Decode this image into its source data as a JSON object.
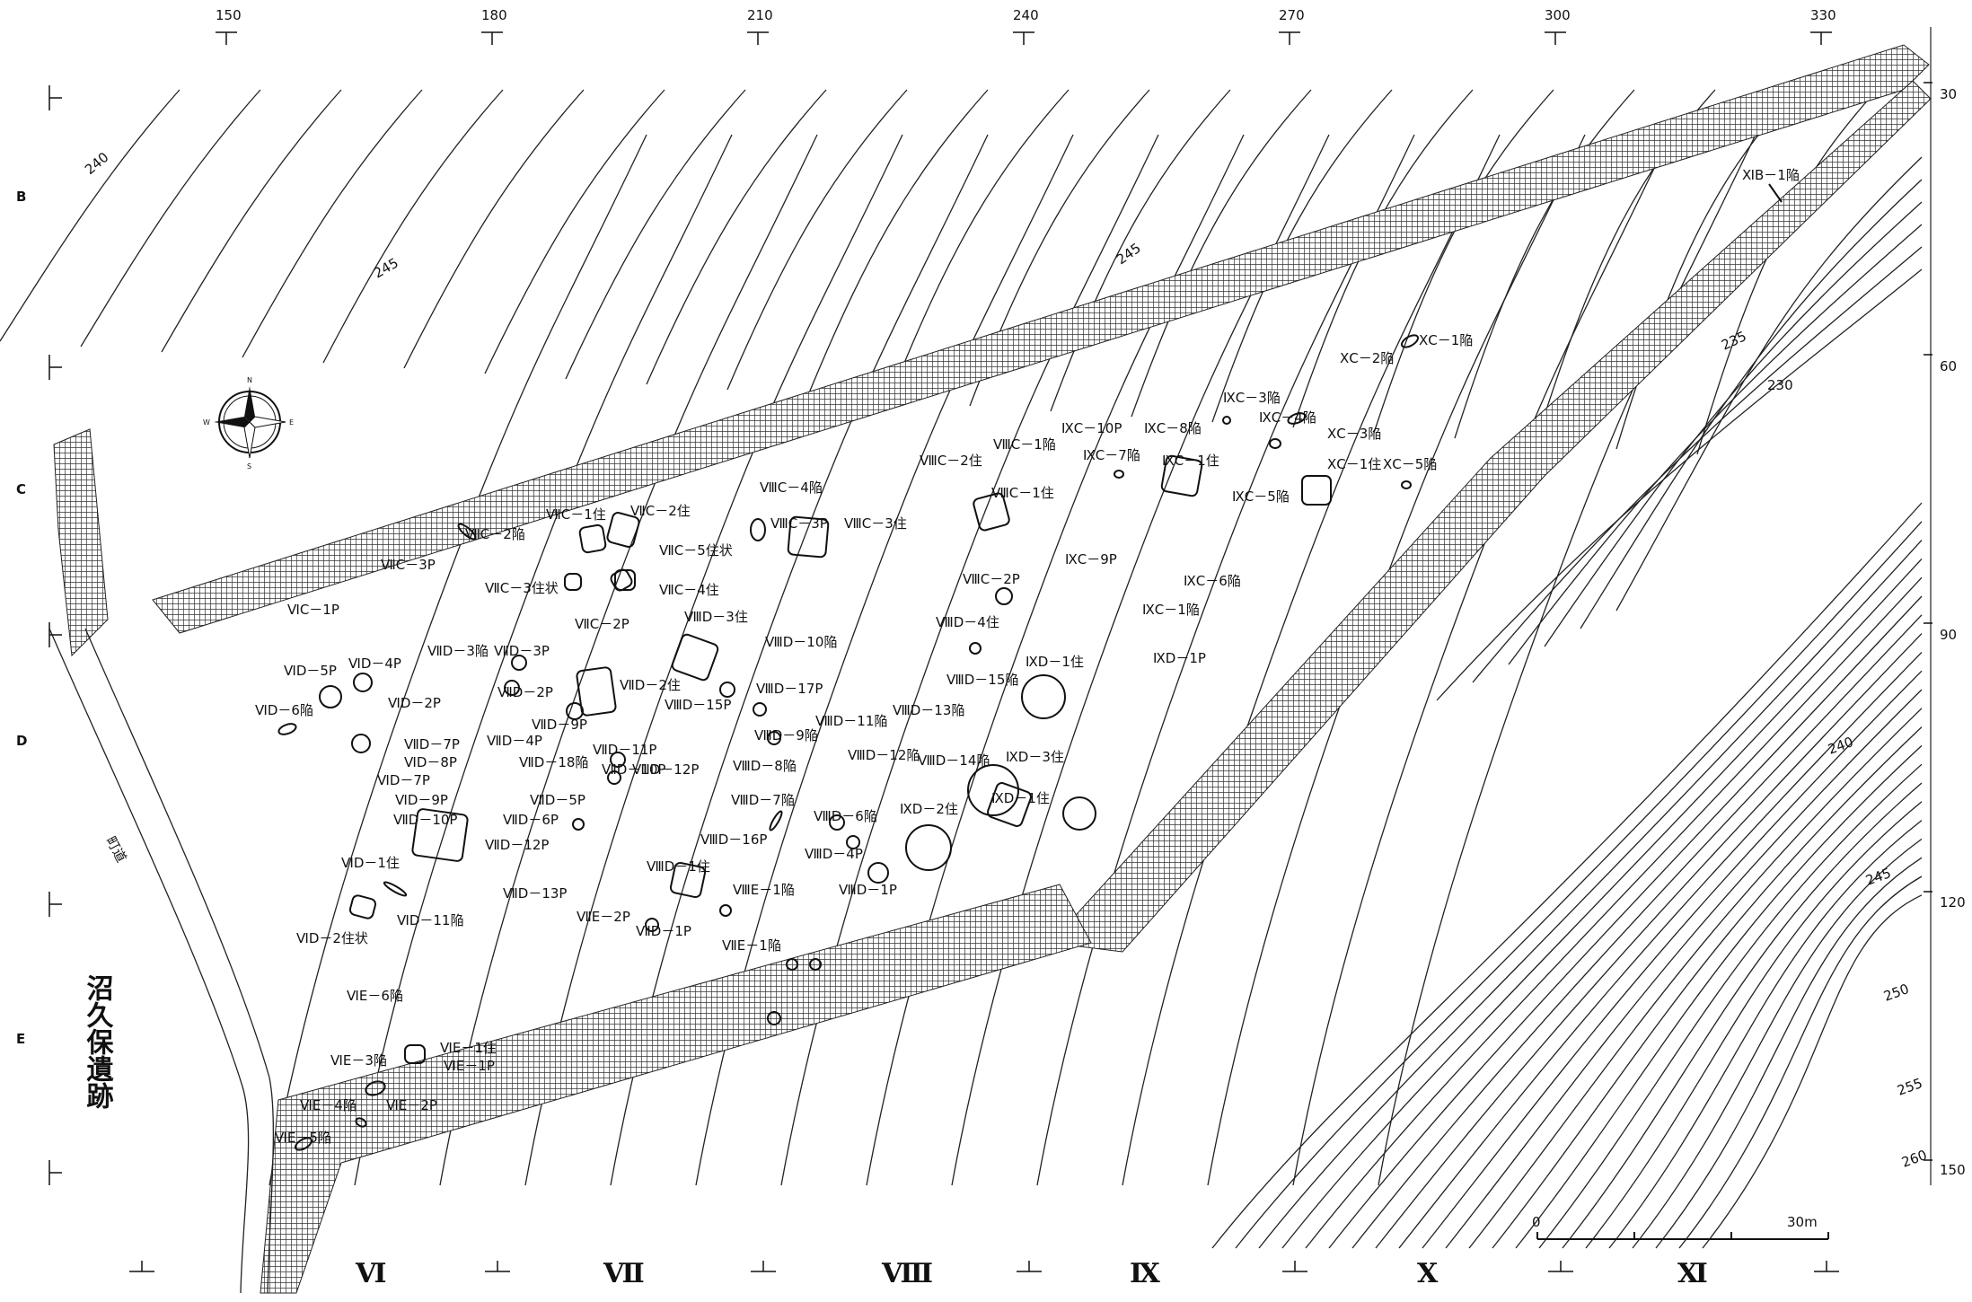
{
  "site_name": "沼久保遺跡",
  "road_label": "町道",
  "top_ticks": [
    "150",
    "180",
    "210",
    "240",
    "270",
    "300",
    "330"
  ],
  "right_ticks": [
    "30",
    "60",
    "90",
    "120",
    "150"
  ],
  "row_letters": [
    "B",
    "C",
    "D",
    "E"
  ],
  "grid_columns": [
    "Ⅵ",
    "Ⅶ",
    "Ⅷ",
    "Ⅸ",
    "Ⅹ",
    "Ⅺ"
  ],
  "contour_labels": [
    "240",
    "245",
    "245",
    "235",
    "230",
    "240",
    "245",
    "250",
    "255",
    "260"
  ],
  "scale": {
    "start": "0",
    "end": "30m"
  },
  "compass": {
    "n": "N",
    "s": "S",
    "e": "E",
    "w": "W"
  },
  "features": [
    "ⅪB－1陥",
    "ⅩC－1陥",
    "ⅩC－2陥",
    "ⅨC－3陥",
    "ⅨC－10P",
    "ⅨC－8陥",
    "ⅨC－4陥",
    "ⅩC－3陥",
    "ⅧC－1陥",
    "ⅧC－2住",
    "ⅨC－7陥",
    "ⅨC－1住",
    "ⅩC－1住",
    "ⅨC－5陥",
    "ⅩC－5陥",
    "ⅧC－4陥",
    "ⅧC－3P",
    "ⅧC－3住",
    "ⅧC－1住",
    "ⅨC－9P",
    "ⅨC－6陥",
    "ⅨC－1陥",
    "ⅨD－1P",
    "ⅦC－1住",
    "ⅦC－2住",
    "ⅦC－2陥",
    "ⅦC－5住状",
    "ⅦC－4住",
    "ⅦC－3P",
    "ⅦC－3住状",
    "ⅥC－1P",
    "ⅧC－2P",
    "ⅦC－2P",
    "ⅧD－3住",
    "ⅧD－10陥",
    "ⅧD－4住",
    "ⅨD－1住",
    "ⅦD－3陥",
    "ⅦD－3P",
    "ⅥD－5P",
    "ⅥD－4P",
    "ⅦD－2P",
    "ⅦD－2住",
    "ⅧD－15P",
    "ⅧD－17P",
    "ⅥD－6陥",
    "ⅥD－2P",
    "ⅦD－9P",
    "ⅧD－9陥",
    "ⅧD－11陥",
    "ⅧD－13陥",
    "ⅧD－15陥",
    "ⅦD－7P",
    "ⅦD－4P",
    "ⅦD－11P",
    "ⅧD－12陥",
    "ⅧD－12P",
    "ⅧD－8陥",
    "ⅧD－14陥",
    "ⅨD－3住",
    "ⅥD－8P",
    "ⅦD－18陥",
    "ⅦD－10P",
    "ⅥD－7P",
    "ⅥD－9P",
    "ⅦD－5P",
    "ⅧD－7陥",
    "ⅨD－1住",
    "ⅦD－10P",
    "ⅦD－6P",
    "ⅧD－6陥",
    "ⅧD－16P",
    "ⅧD－4P",
    "ⅨD－2住",
    "ⅥD－1住",
    "ⅦD－12P",
    "ⅧD－1住",
    "ⅧE－1陥",
    "ⅧD－1P",
    "ⅦD－13P",
    "ⅦE－2P",
    "ⅥD－11陥",
    "ⅥD－2住状",
    "ⅦD－1P",
    "ⅦE－1陥",
    "ⅥE－6陥",
    "ⅥE－1住",
    "ⅥE－3陥",
    "ⅥE－1P",
    "ⅥE－4陥",
    "ⅥE－2P",
    "ⅥE－5陥"
  ]
}
